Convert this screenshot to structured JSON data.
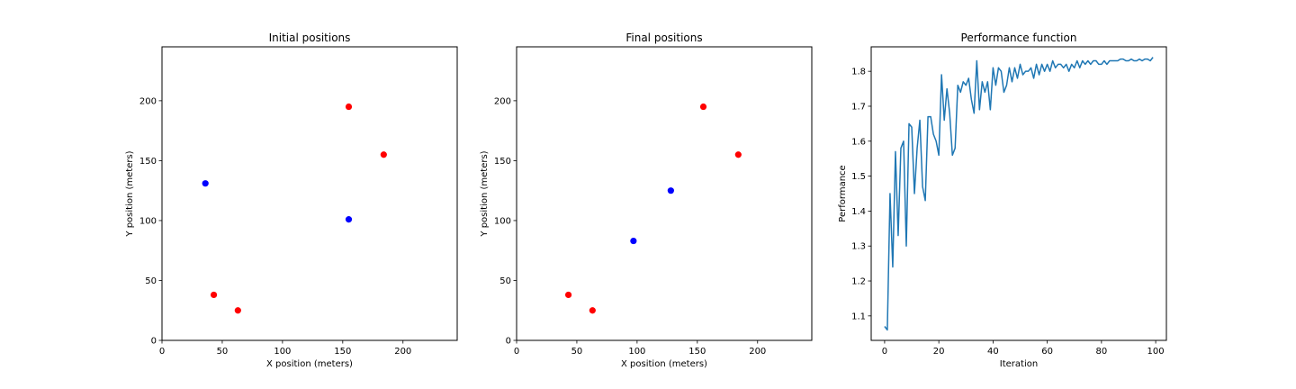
{
  "chart_data": [
    {
      "type": "scatter",
      "title": "Initial positions",
      "xlabel": "X position (meters)",
      "ylabel": "Y position (meters)",
      "xlim": [
        0,
        245
      ],
      "ylim": [
        0,
        245
      ],
      "xticks": [
        0,
        50,
        100,
        150,
        200
      ],
      "yticks": [
        0,
        50,
        100,
        150,
        200
      ],
      "grid": false,
      "series": [
        {
          "color": "#ff0000",
          "points": [
            [
              155,
              195
            ],
            [
              184,
              155
            ],
            [
              43,
              38
            ],
            [
              63,
              25
            ]
          ]
        },
        {
          "color": "#0000ff",
          "points": [
            [
              36,
              131
            ],
            [
              155,
              101
            ]
          ]
        }
      ]
    },
    {
      "type": "scatter",
      "title": "Final positions",
      "xlabel": "X position (meters)",
      "ylabel": "Y position (meters)",
      "xlim": [
        0,
        245
      ],
      "ylim": [
        0,
        245
      ],
      "xticks": [
        0,
        50,
        100,
        150,
        200
      ],
      "yticks": [
        0,
        50,
        100,
        150,
        200
      ],
      "grid": false,
      "series": [
        {
          "color": "#ff0000",
          "points": [
            [
              155,
              195
            ],
            [
              184,
              155
            ],
            [
              43,
              38
            ],
            [
              63,
              25
            ]
          ]
        },
        {
          "color": "#0000ff",
          "points": [
            [
              97,
              83
            ],
            [
              128,
              125
            ]
          ]
        }
      ]
    },
    {
      "type": "line",
      "title": "Performance function",
      "xlabel": "Iteration",
      "ylabel": "Performance",
      "xlim": [
        -4.95,
        103.95
      ],
      "ylim": [
        1.03,
        1.87
      ],
      "xticks": [
        0,
        20,
        40,
        60,
        80,
        100
      ],
      "yticks": [
        1.1,
        1.2,
        1.3,
        1.4,
        1.5,
        1.6,
        1.7,
        1.8
      ],
      "grid": false,
      "series": [
        {
          "color": "#1f77b4",
          "x": [
            0,
            1,
            2,
            3,
            4,
            5,
            6,
            7,
            8,
            9,
            10,
            11,
            12,
            13,
            14,
            15,
            16,
            17,
            18,
            19,
            20,
            21,
            22,
            23,
            24,
            25,
            26,
            27,
            28,
            29,
            30,
            31,
            32,
            33,
            34,
            35,
            36,
            37,
            38,
            39,
            40,
            41,
            42,
            43,
            44,
            45,
            46,
            47,
            48,
            49,
            50,
            51,
            52,
            53,
            54,
            55,
            56,
            57,
            58,
            59,
            60,
            61,
            62,
            63,
            64,
            65,
            66,
            67,
            68,
            69,
            70,
            71,
            72,
            73,
            74,
            75,
            76,
            77,
            78,
            79,
            80,
            81,
            82,
            83,
            84,
            85,
            86,
            87,
            88,
            89,
            90,
            91,
            92,
            93,
            94,
            95,
            96,
            97,
            98,
            99
          ],
          "y": [
            1.07,
            1.06,
            1.45,
            1.24,
            1.57,
            1.33,
            1.58,
            1.6,
            1.3,
            1.65,
            1.64,
            1.45,
            1.58,
            1.66,
            1.47,
            1.43,
            1.67,
            1.67,
            1.62,
            1.6,
            1.56,
            1.79,
            1.66,
            1.75,
            1.68,
            1.56,
            1.58,
            1.76,
            1.74,
            1.77,
            1.76,
            1.78,
            1.72,
            1.68,
            1.83,
            1.69,
            1.77,
            1.74,
            1.77,
            1.69,
            1.81,
            1.76,
            1.81,
            1.8,
            1.74,
            1.76,
            1.81,
            1.77,
            1.81,
            1.78,
            1.82,
            1.79,
            1.8,
            1.8,
            1.81,
            1.78,
            1.82,
            1.79,
            1.82,
            1.8,
            1.82,
            1.8,
            1.83,
            1.81,
            1.82,
            1.82,
            1.81,
            1.82,
            1.8,
            1.82,
            1.81,
            1.83,
            1.81,
            1.83,
            1.82,
            1.83,
            1.82,
            1.83,
            1.83,
            1.82,
            1.82,
            1.83,
            1.82,
            1.83,
            1.83,
            1.83,
            1.83,
            1.835,
            1.835,
            1.83,
            1.83,
            1.835,
            1.83,
            1.83,
            1.835,
            1.83,
            1.835,
            1.835,
            1.83,
            1.84
          ]
        }
      ]
    }
  ]
}
